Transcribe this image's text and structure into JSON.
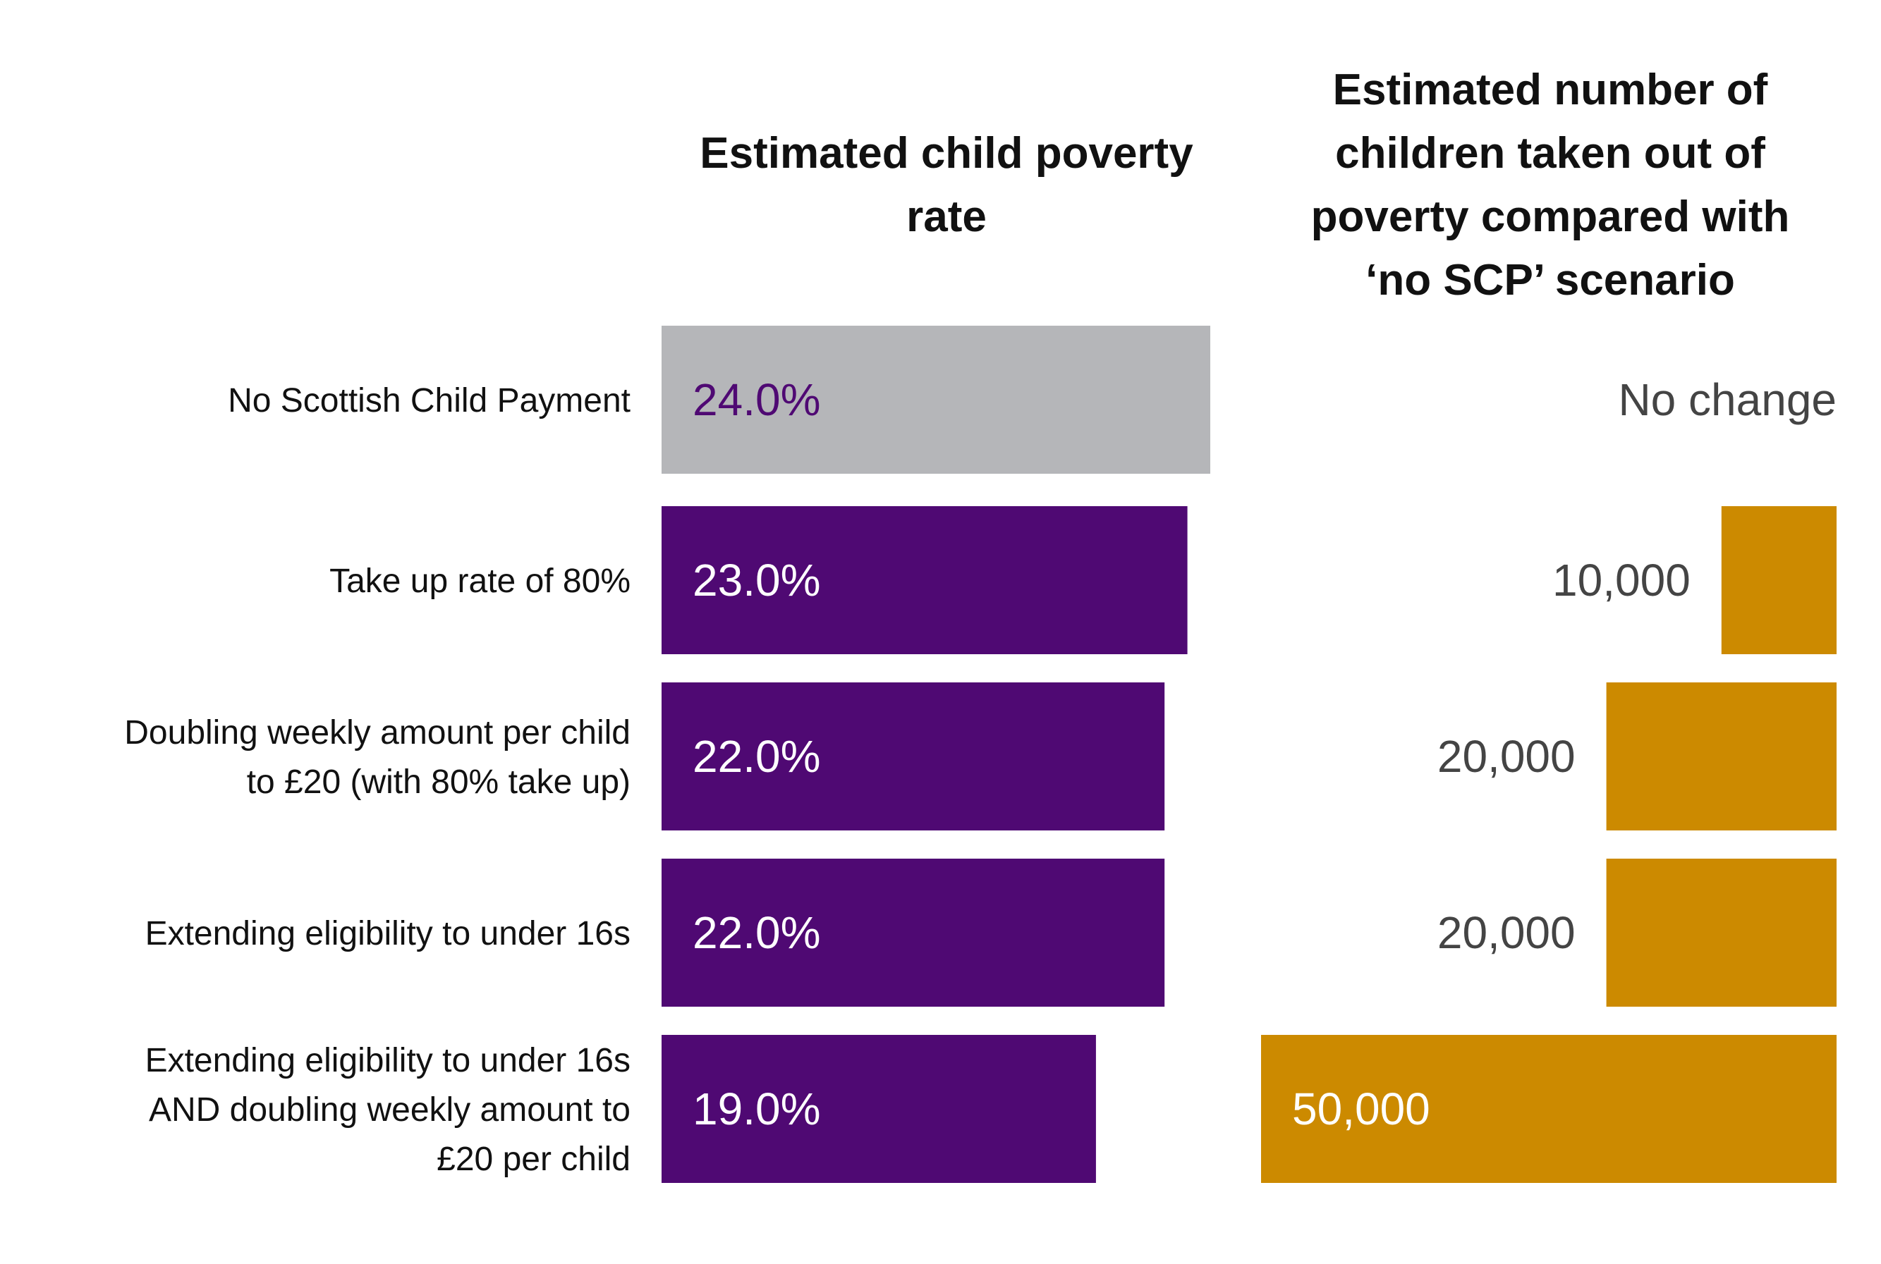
{
  "chart_data": {
    "type": "bar",
    "orientation": "horizontal",
    "categories": [
      "No Scottish Child Payment",
      "Take up rate of 80%",
      "Doubling weekly amount per child to £20 (with 80% take up)",
      "Extending eligibility to under 16s",
      "Extending eligibility to under 16s AND doubling weekly amount to £20 per child"
    ],
    "category_lines": [
      [
        "No Scottish Child Payment"
      ],
      [
        "Take up rate of 80%"
      ],
      [
        "Doubling weekly amount per child",
        "to £20 (with 80% take up)"
      ],
      [
        "Extending eligibility to under 16s"
      ],
      [
        "Extending eligibility to under 16s",
        "AND doubling weekly amount to",
        "£20 per child"
      ]
    ],
    "panels": [
      {
        "heading_lines": [
          "Estimated child poverty",
          "rate"
        ],
        "unit": "%",
        "values": [
          24.0,
          23.0,
          22.0,
          22.0,
          19.0
        ],
        "labels": [
          "24.0%",
          "23.0%",
          "22.0%",
          "22.0%",
          "19.0%"
        ],
        "xlim": [
          0,
          24
        ],
        "colors": [
          "#b5b6b9",
          "#4f0973",
          "#4f0973",
          "#4f0973",
          "#4f0973"
        ],
        "label_colors": [
          "#4f0973",
          "#ffffff",
          "#ffffff",
          "#ffffff",
          "#ffffff"
        ]
      },
      {
        "heading_lines": [
          "Estimated number of",
          "children taken out of",
          "poverty compared with",
          "‘no SCP’ scenario"
        ],
        "values": [
          0,
          10000,
          20000,
          20000,
          50000
        ],
        "labels": [
          "No change",
          "10,000",
          "20,000",
          "20,000",
          "50,000"
        ],
        "xlim": [
          0,
          50000
        ],
        "direction": "right-aligned",
        "colors": [
          "#cc8a00",
          "#cc8a00",
          "#cc8a00",
          "#cc8a00",
          "#cc8a00"
        ],
        "label_colors": [
          "#444444",
          "#444444",
          "#444444",
          "#444444",
          "#ffffff"
        ]
      }
    ]
  }
}
